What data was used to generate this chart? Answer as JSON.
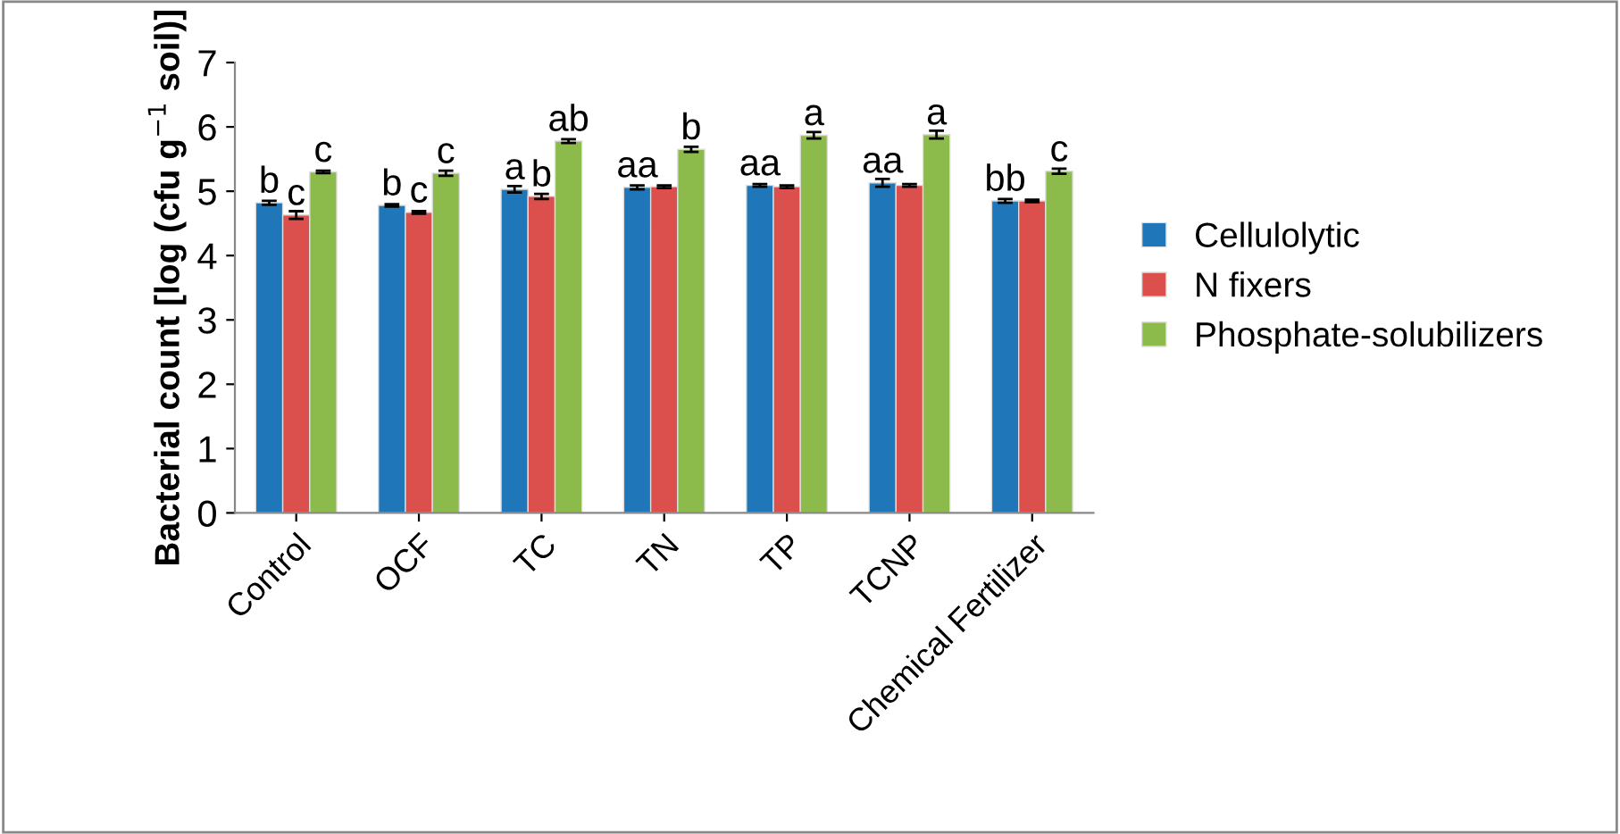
{
  "chart_data": {
    "type": "bar",
    "ylabel": "Bacterial count [log (cfu g$^{−1}$ soil)]",
    "categories": [
      "Control",
      "OCF",
      "TC",
      "TN",
      "TP",
      "TCNP",
      "Chemical Fertilizer"
    ],
    "series": [
      {
        "name": "Cellulolytic",
        "color": "#1f77b9",
        "values": [
          4.82,
          4.78,
          5.03,
          5.06,
          5.09,
          5.13,
          4.85
        ],
        "errors": [
          0.03,
          0.02,
          0.05,
          0.03,
          0.02,
          0.06,
          0.03
        ],
        "value_labels": [
          "b",
          "b",
          "a",
          "aa",
          "aa",
          "aa",
          "bb"
        ]
      },
      {
        "name": "N fixers",
        "color": "#db4f4c",
        "values": [
          4.63,
          4.67,
          4.92,
          5.07,
          5.07,
          5.09,
          4.85
        ],
        "errors": [
          0.06,
          0.02,
          0.04,
          0.02,
          0.02,
          0.02,
          0.02
        ],
        "value_labels": [
          "c",
          "c",
          "b",
          null,
          null,
          null,
          null
        ]
      },
      {
        "name": "Phosphate-solubilizers",
        "color": "#8cbb4b",
        "values": [
          5.3,
          5.28,
          5.78,
          5.65,
          5.87,
          5.88,
          5.31
        ],
        "errors": [
          0.02,
          0.04,
          0.03,
          0.04,
          0.05,
          0.06,
          0.04
        ],
        "value_labels": [
          "c",
          "c",
          "ab",
          "b",
          "a",
          "a",
          "c"
        ]
      }
    ],
    "ylim": [
      0,
      7
    ],
    "yticks": [
      0,
      1,
      2,
      3,
      4,
      5,
      6,
      7
    ],
    "grid": false,
    "legend": "right"
  }
}
